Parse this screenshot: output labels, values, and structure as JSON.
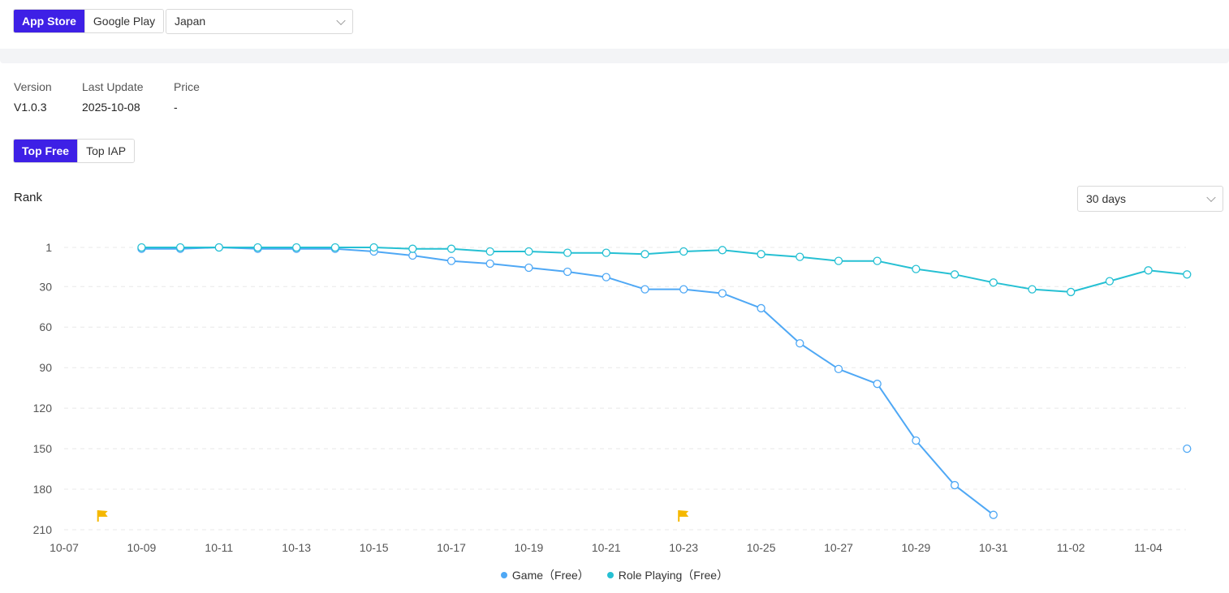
{
  "store_tabs": [
    {
      "label": "App Store",
      "active": true
    },
    {
      "label": "Google Play",
      "active": false
    }
  ],
  "country_select": {
    "value": "Japan"
  },
  "meta": {
    "version_label": "Version",
    "version_value": "V1.0.3",
    "update_label": "Last Update",
    "update_value": "2025-10-08",
    "price_label": "Price",
    "price_value": "-"
  },
  "rank_tabs": [
    {
      "label": "Top Free",
      "active": true
    },
    {
      "label": "Top IAP",
      "active": false
    }
  ],
  "rank_title": "Rank",
  "range_select": {
    "value": "30 days"
  },
  "colors": {
    "accent": "#3e20e6",
    "game": "#4fa8f5",
    "role_playing": "#26c0d3",
    "flag": "#f5b800"
  },
  "chart_data": {
    "type": "line",
    "ylabel": "Rank",
    "y_inverted": true,
    "yticks": [
      1,
      30,
      60,
      90,
      120,
      150,
      180,
      210
    ],
    "x_start": "10-07",
    "xticks": [
      "10-07",
      "10-09",
      "10-11",
      "10-13",
      "10-15",
      "10-17",
      "10-19",
      "10-21",
      "10-23",
      "10-25",
      "10-27",
      "10-29",
      "10-31",
      "11-02",
      "11-04"
    ],
    "grid": "horizontal dashed",
    "legend_position": "bottom-center",
    "flags": [
      "10-08",
      "10-23"
    ],
    "series": [
      {
        "name": "Game（Free）",
        "color": "#4fa8f5",
        "points": [
          {
            "x": "10-09",
            "y": 2
          },
          {
            "x": "10-10",
            "y": 2
          },
          {
            "x": "10-11",
            "y": 1
          },
          {
            "x": "10-12",
            "y": 2
          },
          {
            "x": "10-13",
            "y": 2
          },
          {
            "x": "10-14",
            "y": 2
          },
          {
            "x": "10-15",
            "y": 4
          },
          {
            "x": "10-16",
            "y": 7
          },
          {
            "x": "10-17",
            "y": 11
          },
          {
            "x": "10-18",
            "y": 13
          },
          {
            "x": "10-19",
            "y": 16
          },
          {
            "x": "10-20",
            "y": 19
          },
          {
            "x": "10-21",
            "y": 23
          },
          {
            "x": "10-22",
            "y": 32
          },
          {
            "x": "10-23",
            "y": 32
          },
          {
            "x": "10-24",
            "y": 35
          },
          {
            "x": "10-25",
            "y": 46
          },
          {
            "x": "10-26",
            "y": 72
          },
          {
            "x": "10-27",
            "y": 91
          },
          {
            "x": "10-28",
            "y": 102
          },
          {
            "x": "10-29",
            "y": 144
          },
          {
            "x": "10-30",
            "y": 177
          },
          {
            "x": "10-31",
            "y": 199
          },
          {
            "x": "11-05",
            "y": 150
          }
        ]
      },
      {
        "name": "Role Playing（Free）",
        "color": "#26c0d3",
        "points": [
          {
            "x": "10-09",
            "y": 1
          },
          {
            "x": "10-10",
            "y": 1
          },
          {
            "x": "10-11",
            "y": 1
          },
          {
            "x": "10-12",
            "y": 1
          },
          {
            "x": "10-13",
            "y": 1
          },
          {
            "x": "10-14",
            "y": 1
          },
          {
            "x": "10-15",
            "y": 1
          },
          {
            "x": "10-16",
            "y": 2
          },
          {
            "x": "10-17",
            "y": 2
          },
          {
            "x": "10-18",
            "y": 4
          },
          {
            "x": "10-19",
            "y": 4
          },
          {
            "x": "10-20",
            "y": 5
          },
          {
            "x": "10-21",
            "y": 5
          },
          {
            "x": "10-22",
            "y": 6
          },
          {
            "x": "10-23",
            "y": 4
          },
          {
            "x": "10-24",
            "y": 3
          },
          {
            "x": "10-25",
            "y": 6
          },
          {
            "x": "10-26",
            "y": 8
          },
          {
            "x": "10-27",
            "y": 11
          },
          {
            "x": "10-28",
            "y": 11
          },
          {
            "x": "10-29",
            "y": 17
          },
          {
            "x": "10-30",
            "y": 21
          },
          {
            "x": "10-31",
            "y": 27
          },
          {
            "x": "11-01",
            "y": 32
          },
          {
            "x": "11-02",
            "y": 34
          },
          {
            "x": "11-03",
            "y": 26
          },
          {
            "x": "11-04",
            "y": 18
          },
          {
            "x": "11-05",
            "y": 21
          }
        ]
      }
    ]
  }
}
